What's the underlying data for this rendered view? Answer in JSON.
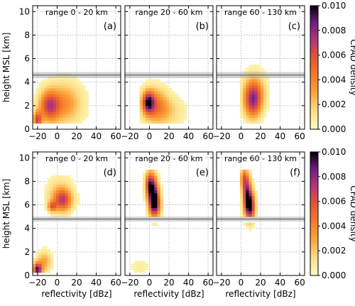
{
  "chart_data": {
    "type": "heatmap",
    "xlim": [
      -25,
      65
    ],
    "ylim": [
      0,
      10.5
    ],
    "xticks": [
      -20,
      0,
      20,
      40,
      60
    ],
    "yticks": [
      0,
      2,
      4,
      6,
      8,
      10
    ],
    "xlabel": "reflectivity [dBz]",
    "ylabel": "height MSL [km]",
    "grid": true,
    "colorbar": {
      "label": "CFAD density",
      "min": 0,
      "max": 0.01,
      "ticks": [
        "0.000",
        "0.002",
        "0.004",
        "0.006",
        "0.008",
        "0.010"
      ]
    },
    "panels": [
      {
        "id": "a",
        "letter": "(a)",
        "title": "range 0 - 20 km",
        "melting_layer": [
          4.35,
          4.85
        ],
        "blobs": [
          {
            "x": -8,
            "y": 2.0,
            "sx": 7,
            "sy": 0.9,
            "w": 0.006
          },
          {
            "x": -20,
            "y": 0.8,
            "sx": 3,
            "sy": 0.5,
            "w": 0.006
          },
          {
            "x": 8,
            "y": 2.2,
            "sx": 12,
            "sy": 1.2,
            "w": 0.0035
          }
        ],
        "xrange": [
          -25,
          48
        ],
        "yrange": [
          0.5,
          4.9
        ]
      },
      {
        "id": "b",
        "letter": "(b)",
        "title": "range 20 - 60 km",
        "melting_layer": [
          4.35,
          4.85
        ],
        "blobs": [
          {
            "x": -1,
            "y": 2.3,
            "sx": 4,
            "sy": 0.6,
            "w": 0.0075
          },
          {
            "x": 5,
            "y": 2.1,
            "sx": 9,
            "sy": 1.0,
            "w": 0.004
          },
          {
            "x": 18,
            "y": 1.5,
            "sx": 12,
            "sy": 0.9,
            "w": 0.0018
          }
        ],
        "xrange": [
          -10,
          45
        ],
        "yrange": [
          0.5,
          5.4
        ]
      },
      {
        "id": "c",
        "letter": "(c)",
        "title": "range 60 - 130 km",
        "melting_layer": [
          4.35,
          4.85
        ],
        "blobs": [
          {
            "x": 12,
            "y": 2.4,
            "sx": 6,
            "sy": 1.0,
            "w": 0.006
          },
          {
            "x": 14,
            "y": 3.2,
            "sx": 8,
            "sy": 1.1,
            "w": 0.003
          }
        ],
        "xrange": [
          0,
          42
        ],
        "yrange": [
          0.6,
          5.4
        ]
      },
      {
        "id": "d",
        "letter": "(d)",
        "title": "range 0 - 20 km",
        "melting_layer": [
          4.6,
          5.0
        ],
        "blobs": [
          {
            "x": 6,
            "y": 6.4,
            "sx": 6,
            "sy": 0.6,
            "w": 0.005
          },
          {
            "x": -5,
            "y": 5.9,
            "sx": 3,
            "sy": 0.3,
            "w": 0.0045
          },
          {
            "x": 3,
            "y": 6.8,
            "sx": 9,
            "sy": 1.0,
            "w": 0.0025
          },
          {
            "x": -20,
            "y": 0.5,
            "sx": 3,
            "sy": 0.4,
            "w": 0.009
          },
          {
            "x": -13,
            "y": 1.2,
            "sx": 5,
            "sy": 0.6,
            "w": 0.003
          }
        ],
        "xrange": [
          -25,
          22
        ],
        "yrange": [
          0.2,
          8.6
        ]
      },
      {
        "id": "e",
        "letter": "(e)",
        "title": "range 20 - 60 km",
        "melting_layer": [
          4.6,
          5.0
        ],
        "blobs": [
          {
            "x": 4,
            "y": 6.9,
            "sx": 3.5,
            "sy": 1.0,
            "w": 0.009
          },
          {
            "x": 0,
            "y": 7.8,
            "sx": 3,
            "sy": 0.7,
            "w": 0.006
          },
          {
            "x": 6,
            "y": 6.0,
            "sx": 4,
            "sy": 0.7,
            "w": 0.006
          },
          {
            "x": -10,
            "y": 0.7,
            "sx": 7,
            "sy": 0.5,
            "w": 0.0008
          }
        ],
        "xrange": [
          -18,
          18
        ],
        "yrange": [
          0.2,
          9.0
        ]
      },
      {
        "id": "f",
        "letter": "(f)",
        "title": "range 60 - 130 km",
        "melting_layer": [
          4.6,
          5.0
        ],
        "blobs": [
          {
            "x": 9,
            "y": 5.9,
            "sx": 3.5,
            "sy": 0.8,
            "w": 0.01
          },
          {
            "x": 6,
            "y": 7.2,
            "sx": 3,
            "sy": 0.9,
            "w": 0.007
          },
          {
            "x": 3,
            "y": 8.3,
            "sx": 2.5,
            "sy": 0.6,
            "w": 0.004
          },
          {
            "x": 8,
            "y": 0.8,
            "sx": 1.5,
            "sy": 0.6,
            "w": 0.0005
          }
        ],
        "xrange": [
          -2,
          20
        ],
        "yrange": [
          0.2,
          9.0
        ]
      }
    ]
  }
}
